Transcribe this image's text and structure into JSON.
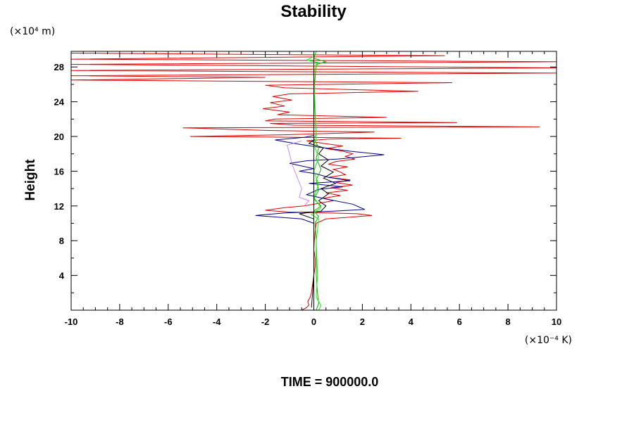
{
  "chart_data": {
    "type": "line",
    "title": "Stability",
    "ylabel": "Height",
    "y_unit": "(×10⁴ m)",
    "x_unit": "(×10⁻⁴ K)",
    "footer": "TIME = 900000.0",
    "xlim": [
      -10,
      10
    ],
    "ylim": [
      0,
      29.8
    ],
    "x_ticks": [
      -10,
      -8,
      -6,
      -4,
      -2,
      0,
      2,
      4,
      6,
      8,
      10
    ],
    "y_ticks": [
      4,
      8,
      12,
      16,
      20,
      24,
      28
    ],
    "grid": false,
    "series": [
      {
        "color": "#e00000",
        "points": [
          [
            -0.5,
            0.0
          ],
          [
            -0.3,
            0.3
          ],
          [
            -0.2,
            0.6
          ],
          [
            -0.25,
            1.0
          ],
          [
            -0.15,
            1.5
          ],
          [
            -0.1,
            2.0
          ],
          [
            -0.05,
            3.0
          ],
          [
            0.0,
            4.0
          ],
          [
            0.05,
            5.0
          ],
          [
            0.05,
            6.0
          ],
          [
            0.0,
            7.0
          ],
          [
            0.02,
            8.0
          ],
          [
            0.05,
            9.0
          ],
          [
            0.1,
            10.0
          ],
          [
            0.5,
            10.5
          ],
          [
            2.4,
            10.9
          ],
          [
            1.8,
            11.1
          ],
          [
            0.6,
            11.2
          ],
          [
            -1.0,
            11.3
          ],
          [
            -2.0,
            11.5
          ],
          [
            -1.2,
            11.8
          ],
          [
            -0.4,
            12.0
          ],
          [
            0.2,
            12.3
          ],
          [
            0.8,
            12.6
          ],
          [
            0.4,
            12.9
          ],
          [
            1.1,
            13.2
          ],
          [
            0.5,
            13.5
          ],
          [
            1.4,
            13.8
          ],
          [
            0.7,
            14.1
          ],
          [
            1.6,
            14.4
          ],
          [
            0.9,
            14.7
          ],
          [
            1.5,
            15.0
          ],
          [
            0.6,
            15.3
          ],
          [
            1.3,
            15.6
          ],
          [
            1.1,
            15.9
          ],
          [
            0.8,
            16.2
          ],
          [
            1.4,
            16.5
          ],
          [
            0.6,
            16.8
          ],
          [
            0.9,
            17.1
          ],
          [
            1.7,
            17.4
          ],
          [
            1.3,
            17.7
          ],
          [
            1.6,
            18.0
          ],
          [
            1.2,
            18.3
          ],
          [
            0.5,
            18.6
          ],
          [
            1.2,
            18.9
          ],
          [
            0.4,
            19.2
          ],
          [
            -0.3,
            19.5
          ],
          [
            0.6,
            19.7
          ],
          [
            3.6,
            19.8
          ],
          [
            -5.1,
            20.0
          ],
          [
            -1.2,
            20.2
          ],
          [
            2.5,
            20.5
          ],
          [
            -2.0,
            20.7
          ],
          [
            -5.4,
            21.0
          ],
          [
            9.3,
            21.1
          ],
          [
            -0.8,
            21.3
          ],
          [
            -1.8,
            21.5
          ],
          [
            5.9,
            21.6
          ],
          [
            -2.0,
            21.8
          ],
          [
            -1.6,
            22.0
          ],
          [
            3.0,
            22.2
          ],
          [
            -1.5,
            22.5
          ],
          [
            -1.0,
            22.8
          ],
          [
            -2.1,
            23.2
          ],
          [
            -1.2,
            23.5
          ],
          [
            -1.8,
            23.9
          ],
          [
            -0.9,
            24.2
          ],
          [
            -1.7,
            24.6
          ],
          [
            -1.0,
            24.9
          ],
          [
            4.3,
            25.2
          ],
          [
            -1.2,
            25.6
          ],
          [
            -2.0,
            25.9
          ],
          [
            5.7,
            26.2
          ],
          [
            -10.0,
            26.5
          ],
          [
            -2.0,
            26.8
          ],
          [
            -10.0,
            27.0
          ],
          [
            10.0,
            27.3
          ],
          [
            -10.0,
            27.6
          ],
          [
            10.0,
            27.9
          ],
          [
            -10.0,
            28.3
          ],
          [
            10.0,
            28.6
          ],
          [
            -10.0,
            28.9
          ],
          [
            5.4,
            29.3
          ],
          [
            -10.0,
            29.6
          ]
        ]
      },
      {
        "color": "#00008b",
        "points": [
          [
            0.0,
            8.0
          ],
          [
            0.0,
            10.0
          ],
          [
            -0.5,
            10.5
          ],
          [
            -2.4,
            10.9
          ],
          [
            -1.2,
            11.2
          ],
          [
            0.8,
            11.4
          ],
          [
            2.1,
            11.6
          ],
          [
            1.6,
            12.2
          ],
          [
            0.5,
            12.8
          ],
          [
            -0.3,
            13.3
          ],
          [
            0.2,
            13.9
          ],
          [
            1.2,
            14.2
          ],
          [
            -0.2,
            14.6
          ],
          [
            1.5,
            14.9
          ],
          [
            0.6,
            15.3
          ],
          [
            0.1,
            15.7
          ],
          [
            -0.6,
            16.0
          ],
          [
            0.0,
            16.3
          ],
          [
            -1.0,
            16.9
          ],
          [
            -0.3,
            17.2
          ],
          [
            1.0,
            17.4
          ],
          [
            2.9,
            17.9
          ],
          [
            1.5,
            18.3
          ],
          [
            0.1,
            18.8
          ],
          [
            -0.6,
            19.1
          ],
          [
            -1.6,
            19.6
          ],
          [
            -0.4,
            19.9
          ],
          [
            0.0,
            20.1
          ]
        ]
      },
      {
        "color": "#000000",
        "points": [
          [
            -0.1,
            0.3
          ],
          [
            -0.05,
            2.0
          ],
          [
            0.0,
            4.0
          ],
          [
            0.0,
            8.0
          ],
          [
            0.0,
            10.5
          ],
          [
            -0.6,
            11.1
          ],
          [
            0.3,
            11.4
          ],
          [
            0.5,
            12.0
          ],
          [
            0.2,
            12.6
          ],
          [
            0.6,
            13.4
          ],
          [
            0.3,
            14.0
          ],
          [
            0.9,
            14.6
          ],
          [
            0.4,
            15.2
          ],
          [
            0.8,
            15.9
          ],
          [
            0.3,
            16.6
          ],
          [
            0.6,
            17.3
          ],
          [
            0.2,
            18.0
          ],
          [
            0.4,
            18.7
          ],
          [
            -0.2,
            19.2
          ],
          [
            0.0,
            19.6
          ]
        ]
      },
      {
        "color": "#cc88ff",
        "points": [
          [
            -0.4,
            12.0
          ],
          [
            -0.2,
            12.6
          ],
          [
            -0.6,
            13.0
          ],
          [
            -0.5,
            14.0
          ],
          [
            -0.9,
            16.8
          ],
          [
            -1.0,
            18.0
          ],
          [
            -1.1,
            19.0
          ],
          [
            -0.5,
            19.5
          ]
        ]
      },
      {
        "color": "#1aa800",
        "points": [
          [
            0.1,
            0.0
          ],
          [
            0.2,
            0.8
          ],
          [
            0.15,
            2.0
          ],
          [
            0.1,
            4.0
          ],
          [
            0.1,
            8.0
          ],
          [
            0.05,
            10.0
          ],
          [
            0.2,
            10.8
          ],
          [
            0.0,
            11.4
          ],
          [
            0.3,
            12.0
          ],
          [
            0.0,
            12.8
          ],
          [
            0.2,
            13.8
          ],
          [
            0.1,
            15.0
          ],
          [
            0.3,
            16.2
          ],
          [
            0.1,
            17.5
          ],
          [
            0.2,
            18.7
          ],
          [
            0.0,
            19.8
          ],
          [
            0.1,
            20.2
          ],
          [
            0.0,
            25.0
          ],
          [
            0.1,
            28.3
          ],
          [
            0.5,
            28.6
          ],
          [
            0.0,
            29.0
          ],
          [
            0.1,
            29.8
          ]
        ]
      },
      {
        "color": "#00ff00",
        "points": [
          [
            0.2,
            0.0
          ],
          [
            0.3,
            0.5
          ],
          [
            0.1,
            1.5
          ],
          [
            0.15,
            4.0
          ],
          [
            0.1,
            8.0
          ],
          [
            0.2,
            10.5
          ],
          [
            -0.1,
            11.0
          ],
          [
            0.3,
            11.8
          ],
          [
            0.0,
            13.0
          ],
          [
            0.2,
            14.5
          ],
          [
            0.0,
            16.0
          ],
          [
            0.2,
            17.6
          ],
          [
            0.0,
            19.0
          ],
          [
            0.1,
            19.8
          ],
          [
            0.0,
            27.5
          ],
          [
            0.2,
            28.5
          ],
          [
            -0.3,
            28.8
          ],
          [
            0.0,
            29.2
          ],
          [
            0.1,
            29.8
          ]
        ]
      },
      {
        "color": "#000000",
        "points": [
          [
            0.0,
            0.0
          ],
          [
            0.0,
            29.8
          ]
        ]
      }
    ]
  }
}
